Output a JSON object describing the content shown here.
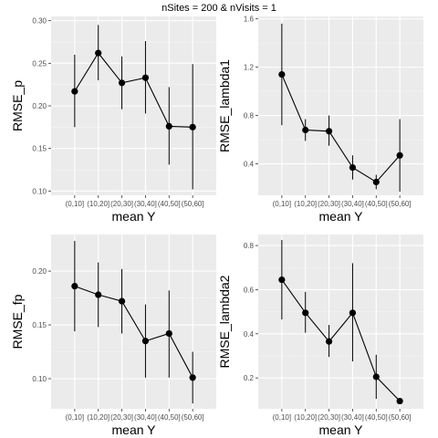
{
  "figure": {
    "title": "nSites = 200 & nVisits = 1",
    "panel_bg": "#ebebeb",
    "grid_major": "#ffffff",
    "grid_minor": "#f5f5f5",
    "point_color": "#000000"
  },
  "chart_data": [
    {
      "type": "line",
      "xlabel": "mean Y",
      "ylabel": "RMSE_p",
      "categories": [
        "(0,10]",
        "(10,20]",
        "(20,30]",
        "(30,40]",
        "(40,50]",
        "(50,60]"
      ],
      "values": [
        0.217,
        0.262,
        0.227,
        0.233,
        0.176,
        0.175
      ],
      "lower": [
        0.175,
        0.23,
        0.196,
        0.191,
        0.131,
        0.102
      ],
      "upper": [
        0.26,
        0.295,
        0.258,
        0.276,
        0.222,
        0.249
      ],
      "ylim": [
        0.095,
        0.305
      ],
      "yticks": [
        0.1,
        0.15,
        0.2,
        0.25,
        0.3
      ],
      "ytick_labels": [
        "0.10",
        "0.15",
        "0.20",
        "0.25",
        "0.30"
      ],
      "grid": true
    },
    {
      "type": "line",
      "xlabel": "mean Y",
      "ylabel": "RMSE_lambda1",
      "categories": [
        "(0,10]",
        "(10,20]",
        "(20,30]",
        "(30,40]",
        "(40,50]",
        "(50,60]"
      ],
      "values": [
        1.14,
        0.68,
        0.67,
        0.37,
        0.25,
        0.47
      ],
      "lower": [
        0.72,
        0.59,
        0.55,
        0.27,
        0.19,
        0.17
      ],
      "upper": [
        1.56,
        0.77,
        0.8,
        0.47,
        0.31,
        0.77
      ],
      "ylim": [
        0.14,
        1.62
      ],
      "yticks": [
        0.4,
        0.8,
        1.2,
        1.6
      ],
      "ytick_labels": [
        "0.4",
        "0.8",
        "1.2",
        "1.6"
      ],
      "grid": true
    },
    {
      "type": "line",
      "xlabel": "mean Y",
      "ylabel": "RMSE_fp",
      "categories": [
        "(0,10]",
        "(10,20]",
        "(20,30]",
        "(30,40]",
        "(40,50]",
        "(50,60]"
      ],
      "values": [
        0.186,
        0.178,
        0.172,
        0.135,
        0.142,
        0.101
      ],
      "lower": [
        0.144,
        0.148,
        0.142,
        0.101,
        0.101,
        0.077
      ],
      "upper": [
        0.228,
        0.208,
        0.202,
        0.169,
        0.182,
        0.125
      ],
      "ylim": [
        0.072,
        0.234
      ],
      "yticks": [
        0.1,
        0.15,
        0.2
      ],
      "ytick_labels": [
        "0.10",
        "0.15",
        "0.20"
      ],
      "grid": true
    },
    {
      "type": "line",
      "xlabel": "mean Y",
      "ylabel": "RMSE_lambda2",
      "categories": [
        "(0,10]",
        "(10,20]",
        "(20,30]",
        "(30,40]",
        "(40,50]",
        "(50,60]"
      ],
      "values": [
        0.645,
        0.495,
        0.365,
        0.495,
        0.205,
        0.095
      ],
      "lower": [
        0.465,
        0.405,
        0.295,
        0.275,
        0.105,
        0.085
      ],
      "upper": [
        0.825,
        0.59,
        0.44,
        0.72,
        0.305,
        0.105
      ],
      "ylim": [
        0.06,
        0.85
      ],
      "yticks": [
        0.2,
        0.4,
        0.6,
        0.8
      ],
      "ytick_labels": [
        "0.2",
        "0.4",
        "0.6",
        "0.8"
      ],
      "grid": true
    }
  ]
}
